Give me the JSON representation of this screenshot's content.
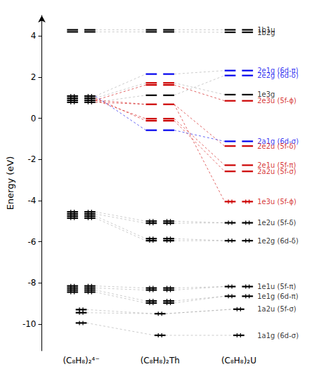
{
  "chart_data": {
    "type": "energy_levels",
    "ylabel": "Energy (eV)",
    "ylim": [
      -11.3,
      5.0
    ],
    "yticks": [
      -10,
      -8,
      -6,
      -4,
      -2,
      0,
      2,
      4
    ],
    "grid": false,
    "categories": [
      "(C₈H₈)₂⁴⁻",
      "(C₈H₈)₂Th",
      "(C₈H₈)₂U"
    ],
    "levels": [
      [
        {
          "energy": 4.3,
          "color": "#000000",
          "nb": 2,
          "filled": false
        },
        {
          "energy": 4.2,
          "color": "#000000",
          "nb": 2,
          "filled": false
        },
        {
          "energy": 1.08,
          "color": "#000000",
          "nb": 2,
          "filled": true
        },
        {
          "energy": 0.98,
          "color": "#000000",
          "nb": 2,
          "filled": true
        },
        {
          "energy": 0.88,
          "color": "#000000",
          "nb": 2,
          "filled": true
        },
        {
          "energy": 0.78,
          "color": "#000000",
          "nb": 2,
          "filled": true
        },
        {
          "energy": -4.55,
          "color": "#000000",
          "nb": 2,
          "filled": true
        },
        {
          "energy": -4.65,
          "color": "#000000",
          "nb": 2,
          "filled": true
        },
        {
          "energy": -4.75,
          "color": "#000000",
          "nb": 2,
          "filled": true
        },
        {
          "energy": -4.85,
          "color": "#000000",
          "nb": 2,
          "filled": true
        },
        {
          "energy": -8.15,
          "color": "#000000",
          "nb": 2,
          "filled": true
        },
        {
          "energy": -8.25,
          "color": "#000000",
          "nb": 2,
          "filled": true
        },
        {
          "energy": -8.35,
          "color": "#000000",
          "nb": 2,
          "filled": true
        },
        {
          "energy": -8.45,
          "color": "#000000",
          "nb": 2,
          "filled": true
        },
        {
          "energy": -9.3,
          "color": "#000000",
          "nb": 1,
          "filled": true
        },
        {
          "energy": -9.45,
          "color": "#000000",
          "nb": 1,
          "filled": true
        },
        {
          "energy": -9.95,
          "color": "#000000",
          "nb": 1,
          "filled": true
        }
      ],
      [
        {
          "energy": 4.3,
          "color": "#000000",
          "nb": 2,
          "filled": false
        },
        {
          "energy": 4.2,
          "color": "#000000",
          "nb": 2,
          "filled": false
        },
        {
          "energy": 2.15,
          "color": "#0000ee",
          "nb": 2,
          "filled": false
        },
        {
          "energy": 1.72,
          "color": "#cc0000",
          "nb": 2,
          "filled": false
        },
        {
          "energy": 1.62,
          "color": "#cc0000",
          "nb": 2,
          "filled": false
        },
        {
          "energy": 1.12,
          "color": "#000000",
          "nb": 2,
          "filled": false
        },
        {
          "energy": 0.68,
          "color": "#cc0000",
          "nb": 2,
          "filled": false
        },
        {
          "energy": -0.02,
          "color": "#cc0000",
          "nb": 2,
          "filled": false
        },
        {
          "energy": -0.12,
          "color": "#cc0000",
          "nb": 2,
          "filled": false
        },
        {
          "energy": -0.58,
          "color": "#0000ee",
          "nb": 2,
          "filled": false
        },
        {
          "energy": -5.0,
          "color": "#000000",
          "nb": 2,
          "filled": true
        },
        {
          "energy": -5.1,
          "color": "#000000",
          "nb": 2,
          "filled": true
        },
        {
          "energy": -5.85,
          "color": "#000000",
          "nb": 2,
          "filled": true
        },
        {
          "energy": -5.95,
          "color": "#000000",
          "nb": 2,
          "filled": true
        },
        {
          "energy": -8.25,
          "color": "#000000",
          "nb": 2,
          "filled": true
        },
        {
          "energy": -8.35,
          "color": "#000000",
          "nb": 2,
          "filled": true
        },
        {
          "energy": -8.88,
          "color": "#000000",
          "nb": 2,
          "filled": true
        },
        {
          "energy": -8.98,
          "color": "#000000",
          "nb": 2,
          "filled": true
        },
        {
          "energy": -9.5,
          "color": "#000000",
          "nb": 1,
          "filled": true
        },
        {
          "energy": -10.55,
          "color": "#000000",
          "nb": 1,
          "filled": true
        }
      ],
      [
        {
          "energy": 4.3,
          "color": "#000000",
          "nb": 2,
          "filled": false,
          "label": "1b1u",
          "label_color": "#000000"
        },
        {
          "energy": 4.18,
          "color": "#000000",
          "nb": 2,
          "filled": false,
          "label": "1b2g",
          "label_color": "#000000"
        },
        {
          "energy": 2.32,
          "color": "#0000ee",
          "nb": 2,
          "filled": false,
          "label": "2e1g (6d-π)",
          "label_color": "#0000ee"
        },
        {
          "energy": 2.08,
          "color": "#0000ee",
          "nb": 2,
          "filled": false,
          "label": "2e2g (6d-δ)",
          "label_color": "#0000ee"
        },
        {
          "energy": 1.15,
          "color": "#000000",
          "nb": 2,
          "filled": false,
          "label": "1e3g",
          "label_color": "#000000"
        },
        {
          "energy": 0.85,
          "color": "#cc0000",
          "nb": 2,
          "filled": false,
          "label": "2e3u (5f-ϕ)",
          "label_color": "#cc0000"
        },
        {
          "energy": -1.12,
          "color": "#0000ee",
          "nb": 2,
          "filled": false,
          "label": "2a1g (6d-σ)",
          "label_color": "#0000ee"
        },
        {
          "energy": -1.35,
          "color": "#cc0000",
          "nb": 2,
          "filled": false,
          "label": "2e2u (5f-δ)",
          "label_color": "#cc0000"
        },
        {
          "energy": -2.28,
          "color": "#cc0000",
          "nb": 2,
          "filled": false,
          "label": "2e1u (5f-π)",
          "label_color": "#cc0000"
        },
        {
          "energy": -2.58,
          "color": "#cc0000",
          "nb": 2,
          "filled": false,
          "label": "2a2u (5f-σ)",
          "label_color": "#cc0000"
        },
        {
          "energy": -4.05,
          "color": "#cc0000",
          "nb": 2,
          "filled": true,
          "label": "1e3u (5f-ϕ)",
          "label_color": "#cc0000"
        },
        {
          "energy": -5.08,
          "color": "#000000",
          "nb": 2,
          "filled": true,
          "label": "1e2u (5f-δ)",
          "label_color": "#000000"
        },
        {
          "energy": -5.95,
          "color": "#000000",
          "nb": 2,
          "filled": true,
          "label": "1e2g (6d-δ)",
          "label_color": "#000000"
        },
        {
          "energy": -8.18,
          "color": "#000000",
          "nb": 2,
          "filled": true,
          "label": "1e1u (5f-π)",
          "label_color": "#000000"
        },
        {
          "energy": -8.65,
          "color": "#000000",
          "nb": 2,
          "filled": true,
          "label": "1e1g (6d-π)",
          "label_color": "#000000"
        },
        {
          "energy": -9.28,
          "color": "#000000",
          "nb": 1,
          "filled": true,
          "label": "1a2u (5f-σ)",
          "label_color": "#000000"
        },
        {
          "energy": -10.55,
          "color": "#000000",
          "nb": 1,
          "filled": true,
          "label": "1a1g (6d-σ)",
          "label_color": "#000000"
        }
      ]
    ],
    "connections": [
      {
        "energies": [
          4.3,
          4.3,
          4.3
        ],
        "color": "#aaaaaa"
      },
      {
        "energies": [
          4.2,
          4.2,
          4.18
        ],
        "color": "#aaaaaa"
      },
      {
        "energies": [
          1.08,
          2.15,
          2.32
        ],
        "color": "#aaaaaa"
      },
      {
        "energies": [
          0.78,
          1.12,
          2.08
        ],
        "color": "#aaaaaa"
      },
      {
        "energies": [
          0.98,
          1.72,
          1.15
        ],
        "color": "#aaaaaa"
      },
      {
        "energies": [
          0.88,
          1.62,
          0.85
        ],
        "color": "#cc0000"
      },
      {
        "energies": [
          0.78,
          0.68,
          -1.35
        ],
        "color": "#cc0000"
      },
      {
        "energies": [
          0.88,
          -0.02,
          -2.28
        ],
        "color": "#cc0000"
      },
      {
        "energies": [
          0.98,
          -0.12,
          -2.58
        ],
        "color": "#cc0000"
      },
      {
        "energies": [
          1.08,
          -0.58,
          -1.12
        ],
        "color": "#0000ee"
      },
      {
        "energies": [
          0.88,
          0.68,
          -4.05
        ],
        "color": "#cc0000"
      },
      {
        "energies": [
          -4.55,
          -5.0,
          -5.08
        ],
        "color": "#aaaaaa"
      },
      {
        "energies": [
          -4.65,
          -5.1,
          -5.08
        ],
        "color": "#aaaaaa"
      },
      {
        "energies": [
          -4.75,
          -5.85,
          -5.95
        ],
        "color": "#aaaaaa"
      },
      {
        "energies": [
          -4.85,
          -5.95,
          -5.95
        ],
        "color": "#aaaaaa"
      },
      {
        "energies": [
          -8.15,
          -8.25,
          -8.18
        ],
        "color": "#aaaaaa"
      },
      {
        "energies": [
          -8.25,
          -8.35,
          -8.18
        ],
        "color": "#aaaaaa"
      },
      {
        "energies": [
          -8.35,
          -8.88,
          -8.65
        ],
        "color": "#aaaaaa"
      },
      {
        "energies": [
          -8.45,
          -8.98,
          -8.65
        ],
        "color": "#aaaaaa"
      },
      {
        "energies": [
          -9.3,
          -9.5,
          -9.28
        ],
        "color": "#aaaaaa"
      },
      {
        "energies": [
          -9.45,
          -9.5,
          -9.28
        ],
        "color": "#aaaaaa"
      },
      {
        "energies": [
          -9.95,
          -10.55,
          -10.55
        ],
        "color": "#aaaaaa"
      }
    ]
  }
}
